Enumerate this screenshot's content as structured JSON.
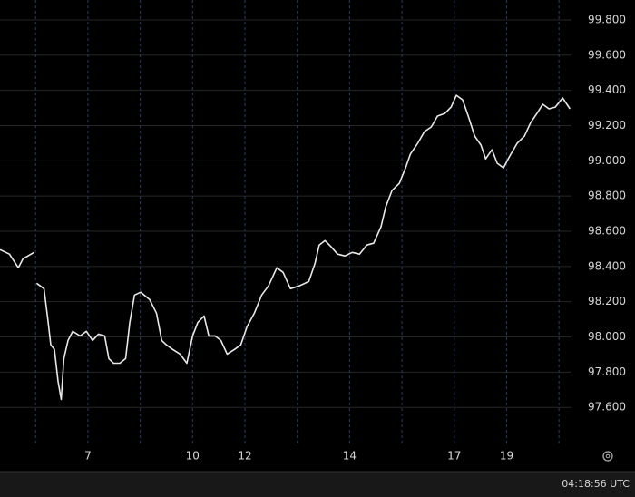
{
  "chart_data": {
    "type": "line",
    "x": [
      -0.68,
      -0.5,
      -0.33,
      -0.24,
      -0.03,
      -0.01,
      0.02,
      0.16,
      0.23,
      0.29,
      0.36,
      0.43,
      0.49,
      0.54,
      0.62,
      0.71,
      0.85,
      0.97,
      1.09,
      1.2,
      1.32,
      1.4,
      1.49,
      1.61,
      1.72,
      1.8,
      1.89,
      2.01,
      2.18,
      2.31,
      2.41,
      2.5,
      2.62,
      2.76,
      2.89,
      3.0,
      3.1,
      3.22,
      3.31,
      3.43,
      3.54,
      3.66,
      3.8,
      3.92,
      4.04,
      4.18,
      4.32,
      4.45,
      4.61,
      4.73,
      4.87,
      5.04,
      5.22,
      5.34,
      5.42,
      5.53,
      5.65,
      5.77,
      5.91,
      6.05,
      6.19,
      6.33,
      6.46,
      6.6,
      6.69,
      6.81,
      6.95,
      7.07,
      7.16,
      7.3,
      7.43,
      7.56,
      7.68,
      7.82,
      7.94,
      8.04,
      8.16,
      8.28,
      8.39,
      8.51,
      8.6,
      8.72,
      8.82,
      8.94,
      9.06,
      9.2,
      9.34,
      9.46,
      9.58,
      9.69,
      9.81,
      9.93,
      10.07,
      10.21
    ],
    "series": [
      {
        "color": "#e8e8e8",
        "values": [
          98.496,
          98.47,
          98.393,
          98.444,
          98.48,
          null,
          98.305,
          98.274,
          98.109,
          97.955,
          97.929,
          97.748,
          97.645,
          97.877,
          97.98,
          98.032,
          98.006,
          98.032,
          97.98,
          98.016,
          98.006,
          97.877,
          97.851,
          97.851,
          97.877,
          98.083,
          98.238,
          98.254,
          98.212,
          98.135,
          97.98,
          97.955,
          97.929,
          97.903,
          97.851,
          98.006,
          98.083,
          98.119,
          98.006,
          98.006,
          97.98,
          97.903,
          97.929,
          97.955,
          98.058,
          98.135,
          98.238,
          98.29,
          98.393,
          98.367,
          98.274,
          98.29,
          98.315,
          98.419,
          98.522,
          98.547,
          98.511,
          98.47,
          98.46,
          98.48,
          98.47,
          98.522,
          98.532,
          98.625,
          98.738,
          98.831,
          98.872,
          98.96,
          99.037,
          99.099,
          99.166,
          99.192,
          99.254,
          99.269,
          99.305,
          99.372,
          99.346,
          99.243,
          99.14,
          99.089,
          99.011,
          99.063,
          98.986,
          98.96,
          99.027,
          99.099,
          99.14,
          99.217,
          99.269,
          99.321,
          99.295,
          99.305,
          99.357,
          99.295
        ]
      }
    ],
    "xlim": [
      -0.68,
      10.24
    ],
    "xticks": [
      {
        "value": 1,
        "label": "7"
      },
      {
        "value": 3,
        "label": "10"
      },
      {
        "value": 4,
        "label": "12"
      },
      {
        "value": 6,
        "label": "14"
      },
      {
        "value": 8,
        "label": "17"
      },
      {
        "value": 9,
        "label": "19"
      }
    ],
    "xgrid": [
      0,
      1,
      2,
      3,
      4,
      5,
      6,
      7,
      8,
      9,
      10
    ],
    "ylim": [
      97.39,
      99.913
    ],
    "yticks": [
      {
        "value": 97.6,
        "label": "97.600"
      },
      {
        "value": 97.8,
        "label": "97.800"
      },
      {
        "value": 98.0,
        "label": "98.000"
      },
      {
        "value": 98.2,
        "label": "98.200"
      },
      {
        "value": 98.4,
        "label": "98.400"
      },
      {
        "value": 98.6,
        "label": "98.600"
      },
      {
        "value": 98.8,
        "label": "98.800"
      },
      {
        "value": 99.0,
        "label": "99.000"
      },
      {
        "value": 99.2,
        "label": "99.200"
      },
      {
        "value": 99.4,
        "label": "99.400"
      },
      {
        "value": 99.6,
        "label": "99.600"
      },
      {
        "value": 99.8,
        "label": "99.800"
      }
    ],
    "grid": true
  },
  "footer": {
    "time": "04:18:56 UTC"
  }
}
